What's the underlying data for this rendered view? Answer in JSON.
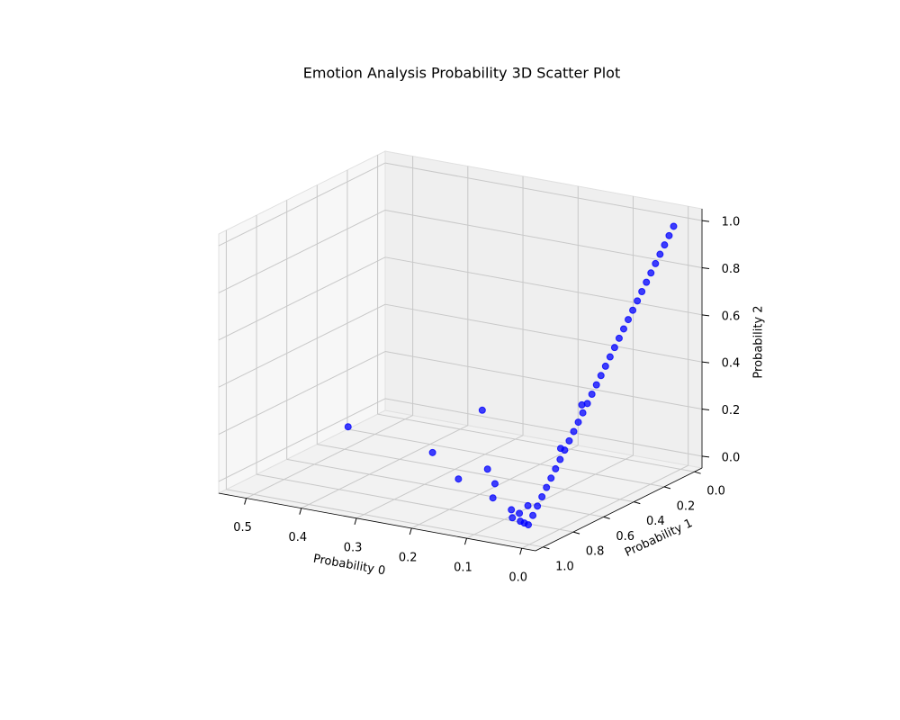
{
  "chart_data": {
    "type": "scatter3d",
    "title": "Emotion Analysis Probability 3D Scatter Plot",
    "x_label": "Probability 0",
    "y_label": "Probability 1",
    "z_label": "Probability 2",
    "xlim": [
      -0.025,
      0.55
    ],
    "ylim": [
      -0.05,
      1.05
    ],
    "zlim": [
      -0.05,
      1.05
    ],
    "xticks": [
      {
        "value": 0,
        "label": "0.0"
      },
      0.1,
      0.2,
      0.3,
      0.4,
      0.5
    ],
    "yticks": [
      {
        "value": 0,
        "label": "0.0"
      },
      0.2,
      0.4,
      0.6,
      0.8,
      {
        "value": 1,
        "label": "1.0"
      }
    ],
    "zticks": [
      {
        "value": 0,
        "label": "0.0"
      },
      0.2,
      0.4,
      0.6,
      0.8,
      {
        "value": 1,
        "label": "1.0"
      }
    ],
    "grid": true,
    "series": [
      {
        "color": "#0000ff",
        "x": [
          0.48,
          0.28,
          0.22,
          0.2,
          0.15,
          0.12,
          0.11,
          0.02,
          0.02,
          0.03,
          0.05,
          0.04,
          0.02,
          0.06,
          0.03,
          0.01,
          0.01,
          0.01,
          0.01,
          0.01,
          0.01,
          0.01,
          0.01,
          0.01,
          0.01,
          0.01,
          0.01,
          0.01,
          0.01,
          0.01,
          0.01,
          0.01,
          0.01,
          0.01,
          0.01,
          0.01,
          0.01,
          0.01,
          0.01,
          0.01,
          0.01,
          0.01,
          0.01,
          0.01,
          0.01,
          0.01,
          0.01,
          0.01
        ],
        "y": [
          0.45,
          0.62,
          0.51,
          0.74,
          0.73,
          0.79,
          0.84,
          0.72,
          0.58,
          0.95,
          0.93,
          0.92,
          0.96,
          0.9,
          0.9,
          0.97,
          0.94,
          0.91,
          0.88,
          0.85,
          0.82,
          0.79,
          0.76,
          0.73,
          0.7,
          0.67,
          0.64,
          0.61,
          0.58,
          0.55,
          0.52,
          0.49,
          0.46,
          0.43,
          0.4,
          0.37,
          0.34,
          0.31,
          0.28,
          0.25,
          0.22,
          0.19,
          0.16,
          0.13,
          0.1,
          0.07,
          0.04,
          0.01
        ],
        "z": [
          0.07,
          0.1,
          0.27,
          0.06,
          0.12,
          0.09,
          0.05,
          0.26,
          0.4,
          0.02,
          0.02,
          0.04,
          0.02,
          0.04,
          0.07,
          0.02,
          0.05,
          0.08,
          0.11,
          0.14,
          0.17,
          0.2,
          0.23,
          0.26,
          0.29,
          0.32,
          0.35,
          0.38,
          0.41,
          0.44,
          0.47,
          0.5,
          0.53,
          0.56,
          0.59,
          0.62,
          0.65,
          0.68,
          0.71,
          0.74,
          0.77,
          0.8,
          0.83,
          0.86,
          0.89,
          0.92,
          0.95,
          0.98
        ]
      }
    ]
  }
}
